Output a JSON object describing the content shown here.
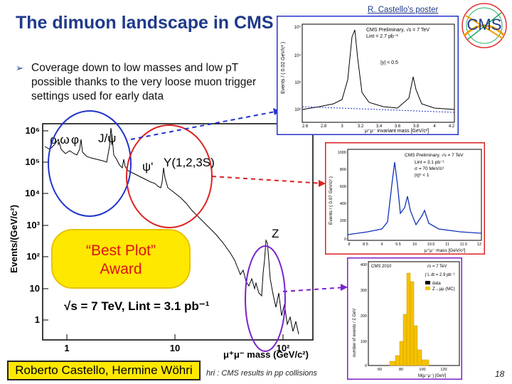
{
  "slide": {
    "title": "The dimuon landscape in CMS",
    "poster_credit": "R. Castello's poster",
    "bullet": "Coverage down to low masses and low pT possible thanks to the very loose muon trigger settings used for early data",
    "award_line1": "“Best Plot”",
    "award_line2": "Award",
    "authors": "Roberto Castello, Hermine Wöhri",
    "footer": "hri : CMS results in pp collisions",
    "page_number": "18"
  },
  "logo": {
    "text": "CMS"
  },
  "main_plot": {
    "ylabel": "Events/(GeV/c²)",
    "xlabel": "μ⁺μ⁻ mass (GeV/c²)",
    "energy_label": "√s = 7 TeV,  Lint = 3.1 pb⁻¹",
    "peak_labels": [
      "ρ,ω",
      "φ",
      "J/ψ",
      "ψ'",
      "Υ(1,2,3S)",
      "Z"
    ],
    "y_ticks": [
      "10⁶",
      "10⁵",
      "10⁴",
      "10³",
      "10²",
      "10",
      "1"
    ],
    "x_ticks": [
      "1",
      "10",
      "10²"
    ],
    "colors": {
      "jpsi_circle": "#2233cc",
      "upsilon_circle": "#dd2222",
      "z_circle": "#7a22cc",
      "award": "#ffe800"
    }
  },
  "insets": {
    "jpsi": {
      "header": "CMS Preliminary, √s = 7 TeV",
      "lumi": "Lint = 2.7 pb⁻¹",
      "cut": "|y| < 0.5",
      "ylabel": "Events / ( 0.02 GeV/c² )",
      "xlabel": "μ⁺μ⁻ invariant mass [GeV/c²]",
      "x_ticks": [
        "2.6",
        "2.8",
        "3",
        "3.2",
        "3.4",
        "3.6",
        "3.8",
        "4",
        "4.2"
      ],
      "y_ticks": [
        "10⁵",
        "10⁴",
        "10³",
        "10²"
      ]
    },
    "upsilon": {
      "header": "CMS Preliminary, √s = 7 TeV",
      "lumi": "Lint = 3.1 pb⁻¹",
      "sigma": "σ = 70 MeV/c²",
      "cut": "|η|ᵘ < 1",
      "ylabel": "Events / ( 0.07 GeV/c² )",
      "xlabel": "μ⁺μ⁻ mass [GeV/c²]",
      "x_ticks": [
        "8",
        "8.5",
        "9",
        "9.5",
        "10",
        "10.5",
        "11",
        "11.5",
        "12"
      ],
      "y_ticks": [
        "1000",
        "800",
        "600",
        "400",
        "200",
        "0"
      ]
    },
    "z": {
      "header": "CMS 2010",
      "energy": "√s = 7 TeV",
      "lumi": "∫ L dt = 2.9 pb⁻¹",
      "legend_data": "data",
      "legend_mc": "Z→μμ (MC)",
      "ylabel": "number of events / 2 GeV",
      "xlabel": "M(μ⁺μ⁻) [GeV]",
      "x_ticks": [
        "60",
        "80",
        "100",
        "120"
      ],
      "y_ticks": [
        "400",
        "300",
        "200",
        "100",
        "0"
      ]
    }
  }
}
